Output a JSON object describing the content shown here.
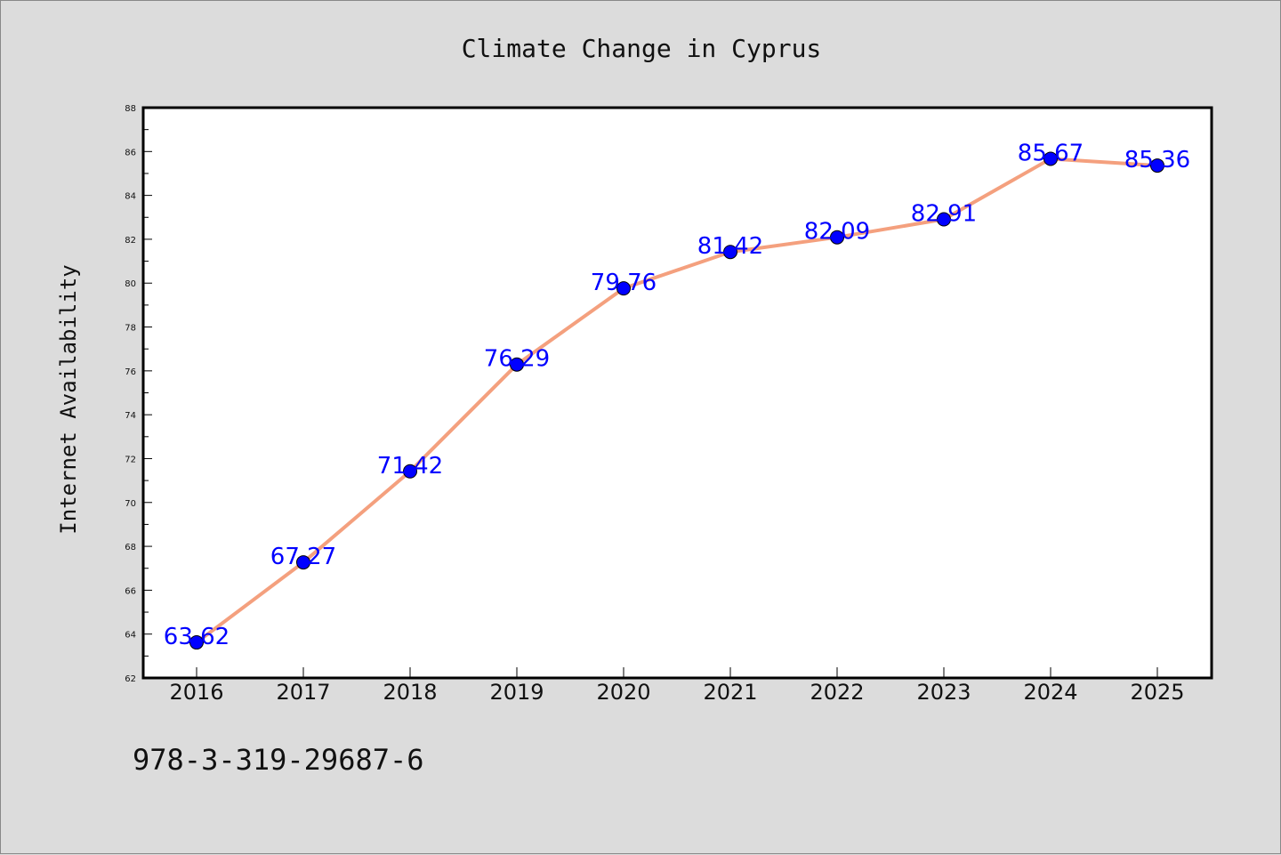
{
  "chart_data": {
    "type": "line",
    "title": "Climate Change in Cyprus",
    "xlabel": "",
    "ylabel": "Internet Availability",
    "categories": [
      "2016",
      "2017",
      "2018",
      "2019",
      "2020",
      "2021",
      "2022",
      "2023",
      "2024",
      "2025"
    ],
    "series": [
      {
        "values": [
          63.62,
          67.27,
          71.42,
          76.29,
          79.76,
          81.42,
          82.09,
          82.91,
          85.67,
          85.36
        ],
        "data_labels": [
          "63.62",
          "67.27",
          "71.42",
          "76.29",
          "79.76",
          "81.42",
          "82.09",
          "82.91",
          "85.67",
          "85.36"
        ],
        "line_color": "#f4a07e",
        "marker_color": "#0000ff"
      }
    ],
    "ylim": [
      62,
      88
    ],
    "yticks": [
      "62",
      "64",
      "66",
      "68",
      "70",
      "72",
      "74",
      "76",
      "78",
      "80",
      "82",
      "84",
      "86",
      "88"
    ],
    "grid": false,
    "legend": "none"
  },
  "footer": {
    "isbn": "978-3-319-29687-6"
  },
  "colors": {
    "background": "#dcdcdc",
    "plot_background": "#ffffff",
    "line": "#f4a07e",
    "marker": "#0000ff",
    "data_label": "#0000ff"
  }
}
